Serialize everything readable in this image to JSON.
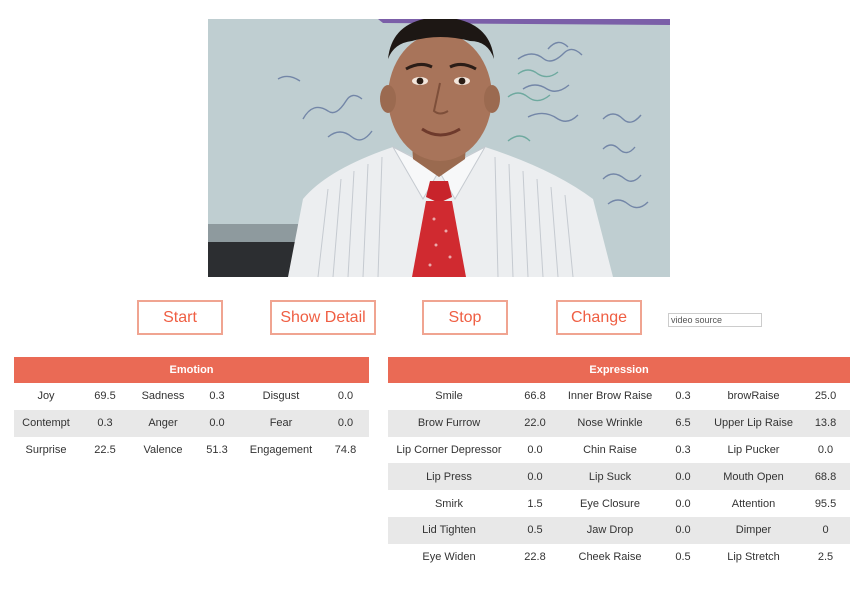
{
  "controls": {
    "start_label": "Start",
    "show_detail_label": "Show Detail",
    "stop_label": "Stop",
    "change_label": "Change",
    "video_source_placeholder": "video source"
  },
  "emotion": {
    "title": "Emotion",
    "rows": [
      [
        [
          "Joy",
          "69.5"
        ],
        [
          "Sadness",
          "0.3"
        ],
        [
          "Disgust",
          "0.0"
        ]
      ],
      [
        [
          "Contempt",
          "0.3"
        ],
        [
          "Anger",
          "0.0"
        ],
        [
          "Fear",
          "0.0"
        ]
      ],
      [
        [
          "Surprise",
          "22.5"
        ],
        [
          "Valence",
          "51.3"
        ],
        [
          "Engagement",
          "74.8"
        ]
      ]
    ]
  },
  "expression": {
    "title": "Expression",
    "rows": [
      [
        [
          "Smile",
          "66.8"
        ],
        [
          "Inner Brow Raise",
          "0.3"
        ],
        [
          "browRaise",
          "25.0"
        ]
      ],
      [
        [
          "Brow Furrow",
          "22.0"
        ],
        [
          "Nose Wrinkle",
          "6.5"
        ],
        [
          "Upper Lip Raise",
          "13.8"
        ]
      ],
      [
        [
          "Lip Corner Depressor",
          "0.0"
        ],
        [
          "Chin Raise",
          "0.3"
        ],
        [
          "Lip Pucker",
          "0.0"
        ]
      ],
      [
        [
          "Lip Press",
          "0.0"
        ],
        [
          "Lip Suck",
          "0.0"
        ],
        [
          "Mouth Open",
          "68.8"
        ]
      ],
      [
        [
          "Smirk",
          "1.5"
        ],
        [
          "Eye Closure",
          "0.0"
        ],
        [
          "Attention",
          "95.5"
        ]
      ],
      [
        [
          "Lid Tighten",
          "0.5"
        ],
        [
          "Jaw Drop",
          "0.0"
        ],
        [
          "Dimper",
          "0"
        ]
      ],
      [
        [
          "Eye Widen",
          "22.8"
        ],
        [
          "Cheek Raise",
          "0.5"
        ],
        [
          "Lip Stretch",
          "2.5"
        ]
      ]
    ]
  }
}
